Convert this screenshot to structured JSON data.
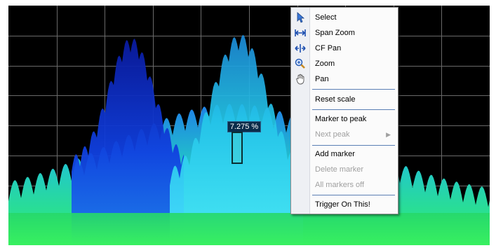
{
  "spectrum": {
    "marker_readout": "7.275 %"
  },
  "context_menu": {
    "groups": [
      [
        {
          "label": "Select",
          "icon": "arrow-cursor-icon",
          "enabled": true
        },
        {
          "label": "Span Zoom",
          "icon": "span-zoom-icon",
          "enabled": true
        },
        {
          "label": "CF Pan",
          "icon": "cf-pan-icon",
          "enabled": true
        },
        {
          "label": "Zoom",
          "icon": "magnifier-icon",
          "enabled": true
        },
        {
          "label": "Pan",
          "icon": "hand-icon",
          "enabled": true
        }
      ],
      [
        {
          "label": "Reset scale",
          "enabled": true
        }
      ],
      [
        {
          "label": "Marker to peak",
          "enabled": true
        },
        {
          "label": "Next peak",
          "enabled": false,
          "submenu": true
        }
      ],
      [
        {
          "label": "Add marker",
          "enabled": true
        },
        {
          "label": "Delete marker",
          "enabled": false
        },
        {
          "label": "All markers off",
          "enabled": false
        }
      ],
      [
        {
          "label": "Trigger On This!",
          "enabled": true
        }
      ]
    ]
  },
  "colors": {
    "spectrum_dark": "#0a22c8",
    "spectrum_cyan": "#22c8ee",
    "spectrum_green": "#26e86a",
    "grid": "#6a6a6a",
    "menu_separator": "#5b7fb5"
  }
}
